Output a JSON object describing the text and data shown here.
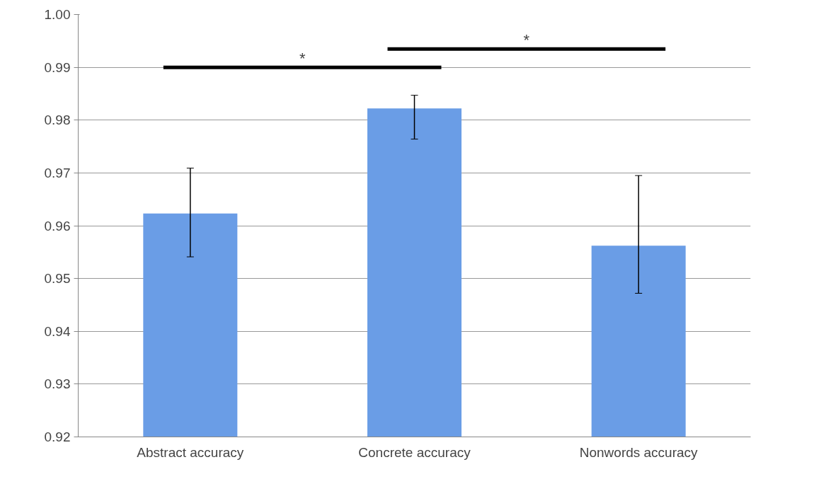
{
  "chart_data": {
    "type": "bar",
    "categories": [
      "Abstract accuracy",
      "Concrete accuracy",
      "Nonwords accuracy"
    ],
    "values": [
      0.9623,
      0.9822,
      0.9562
    ],
    "errors": [
      [
        0.9541,
        0.9709
      ],
      [
        0.9764,
        0.9847
      ],
      [
        0.9472,
        0.9695
      ]
    ],
    "color": "#6a9de6",
    "ylim": [
      0.92,
      1.0
    ],
    "yticks": [
      {
        "value": 0.92,
        "label": "0.92"
      },
      {
        "value": 0.93,
        "label": "0.93"
      },
      {
        "value": 0.94,
        "label": "0.94"
      },
      {
        "value": 0.95,
        "label": "0.95"
      },
      {
        "value": 0.96,
        "label": "0.96"
      },
      {
        "value": 0.97,
        "label": "0.97"
      },
      {
        "value": 0.98,
        "label": "0.98"
      },
      {
        "value": 0.99,
        "label": "0.99"
      },
      {
        "value": 1.0,
        "label": "1.00"
      }
    ],
    "grid": "y",
    "annotations": [
      "*",
      "*"
    ]
  }
}
